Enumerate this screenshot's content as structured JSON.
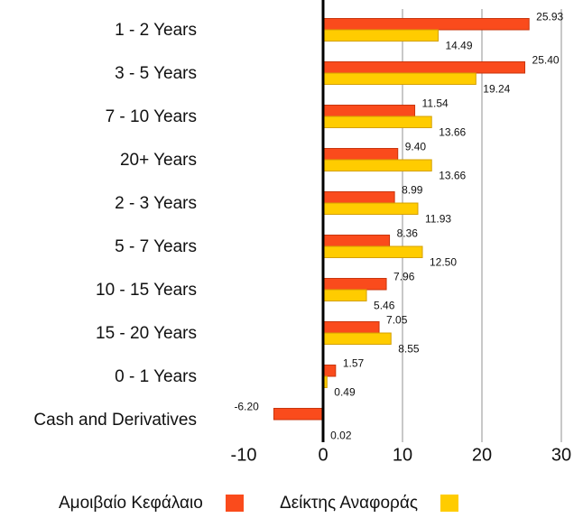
{
  "chart_data": {
    "type": "barh",
    "categories": [
      "1 - 2 Years",
      "3 - 5 Years",
      "7 - 10 Years",
      "20+ Years",
      "2 - 3 Years",
      "5 - 7 Years",
      "10 - 15 Years",
      "15 - 20 Years",
      "0 - 1 Years",
      "Cash and Derivatives"
    ],
    "series": [
      {
        "name": "Αμοιβαίο Κεφάλαιο",
        "color": "#fa4b1c",
        "values": [
          25.93,
          25.4,
          11.54,
          9.4,
          8.99,
          8.36,
          7.96,
          7.05,
          1.57,
          -6.2
        ],
        "value_labels": [
          "25.93",
          "25.40",
          "11.54",
          "9.40",
          "8.99",
          "8.36",
          "7.96",
          "7.05",
          "1.57",
          "-6.20"
        ]
      },
      {
        "name": "Δείκτης Αναφοράς",
        "color": "#ffcc00",
        "values": [
          14.49,
          19.24,
          13.66,
          13.66,
          11.93,
          12.5,
          5.46,
          8.55,
          0.49,
          0.02
        ],
        "value_labels": [
          "14.49",
          "19.24",
          "13.66",
          "13.66",
          "11.93",
          "12.50",
          "5.46",
          "8.55",
          "0.49",
          "0.02"
        ]
      }
    ],
    "xlim": [
      -10,
      30
    ],
    "xticks": [
      -10,
      0,
      10,
      20,
      30
    ],
    "grid": true,
    "legend": "bottom"
  }
}
